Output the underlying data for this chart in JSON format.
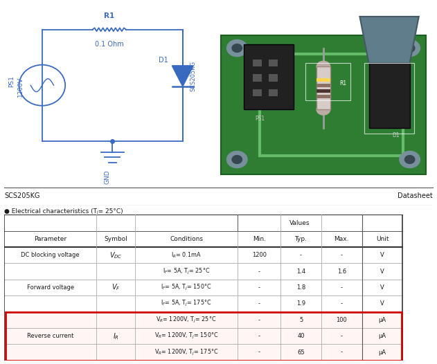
{
  "title_left": "SCS205KG",
  "title_right": "Datasheet",
  "subtitle": "● Electrical characteristics (Tⱼ= 25°C)",
  "bg_color": "#ffffff",
  "highlight_border_color": "#cc0000",
  "table_line_color": "#aaaaaa",
  "text_color": "#1a1a1a",
  "blue_color": "#3a6abf",
  "circuit_color": "#3a6abf",
  "condition_texts": [
    "I$_R$= 0.1mA",
    "I$_F$= 5A, T$_j$= 25°C",
    "I$_F$= 5A, T$_j$= 150°C",
    "I$_F$= 5A, T$_j$= 175°C",
    "V$_R$= 1200V, T$_j$= 25°C",
    "V$_R$= 1200V, T$_j$= 150°C",
    "V$_R$= 1200V, T$_j$= 175°C"
  ],
  "min_vals": [
    "1200",
    "-",
    "-",
    "-",
    "-",
    "-",
    "-"
  ],
  "typ_vals": [
    "-",
    "1.4",
    "1.8",
    "1.9",
    "5",
    "40",
    "65"
  ],
  "max_vals": [
    "-",
    "1.6",
    "-",
    "-",
    "100",
    "-",
    "-"
  ],
  "units_vals": [
    "V",
    "V",
    "V",
    "V",
    "μA",
    "μA",
    "μA"
  ],
  "highlighted_rows": [
    4,
    5,
    6
  ],
  "param_texts": [
    [
      0,
      0,
      "DC blocking voltage"
    ],
    [
      1,
      3,
      "Forward voltage"
    ],
    [
      4,
      6,
      "Reverse current"
    ]
  ],
  "symbol_texts": [
    [
      0,
      0,
      "$V_{DC}$"
    ],
    [
      1,
      3,
      "$V_F$"
    ],
    [
      4,
      6,
      "$I_R$"
    ]
  ]
}
